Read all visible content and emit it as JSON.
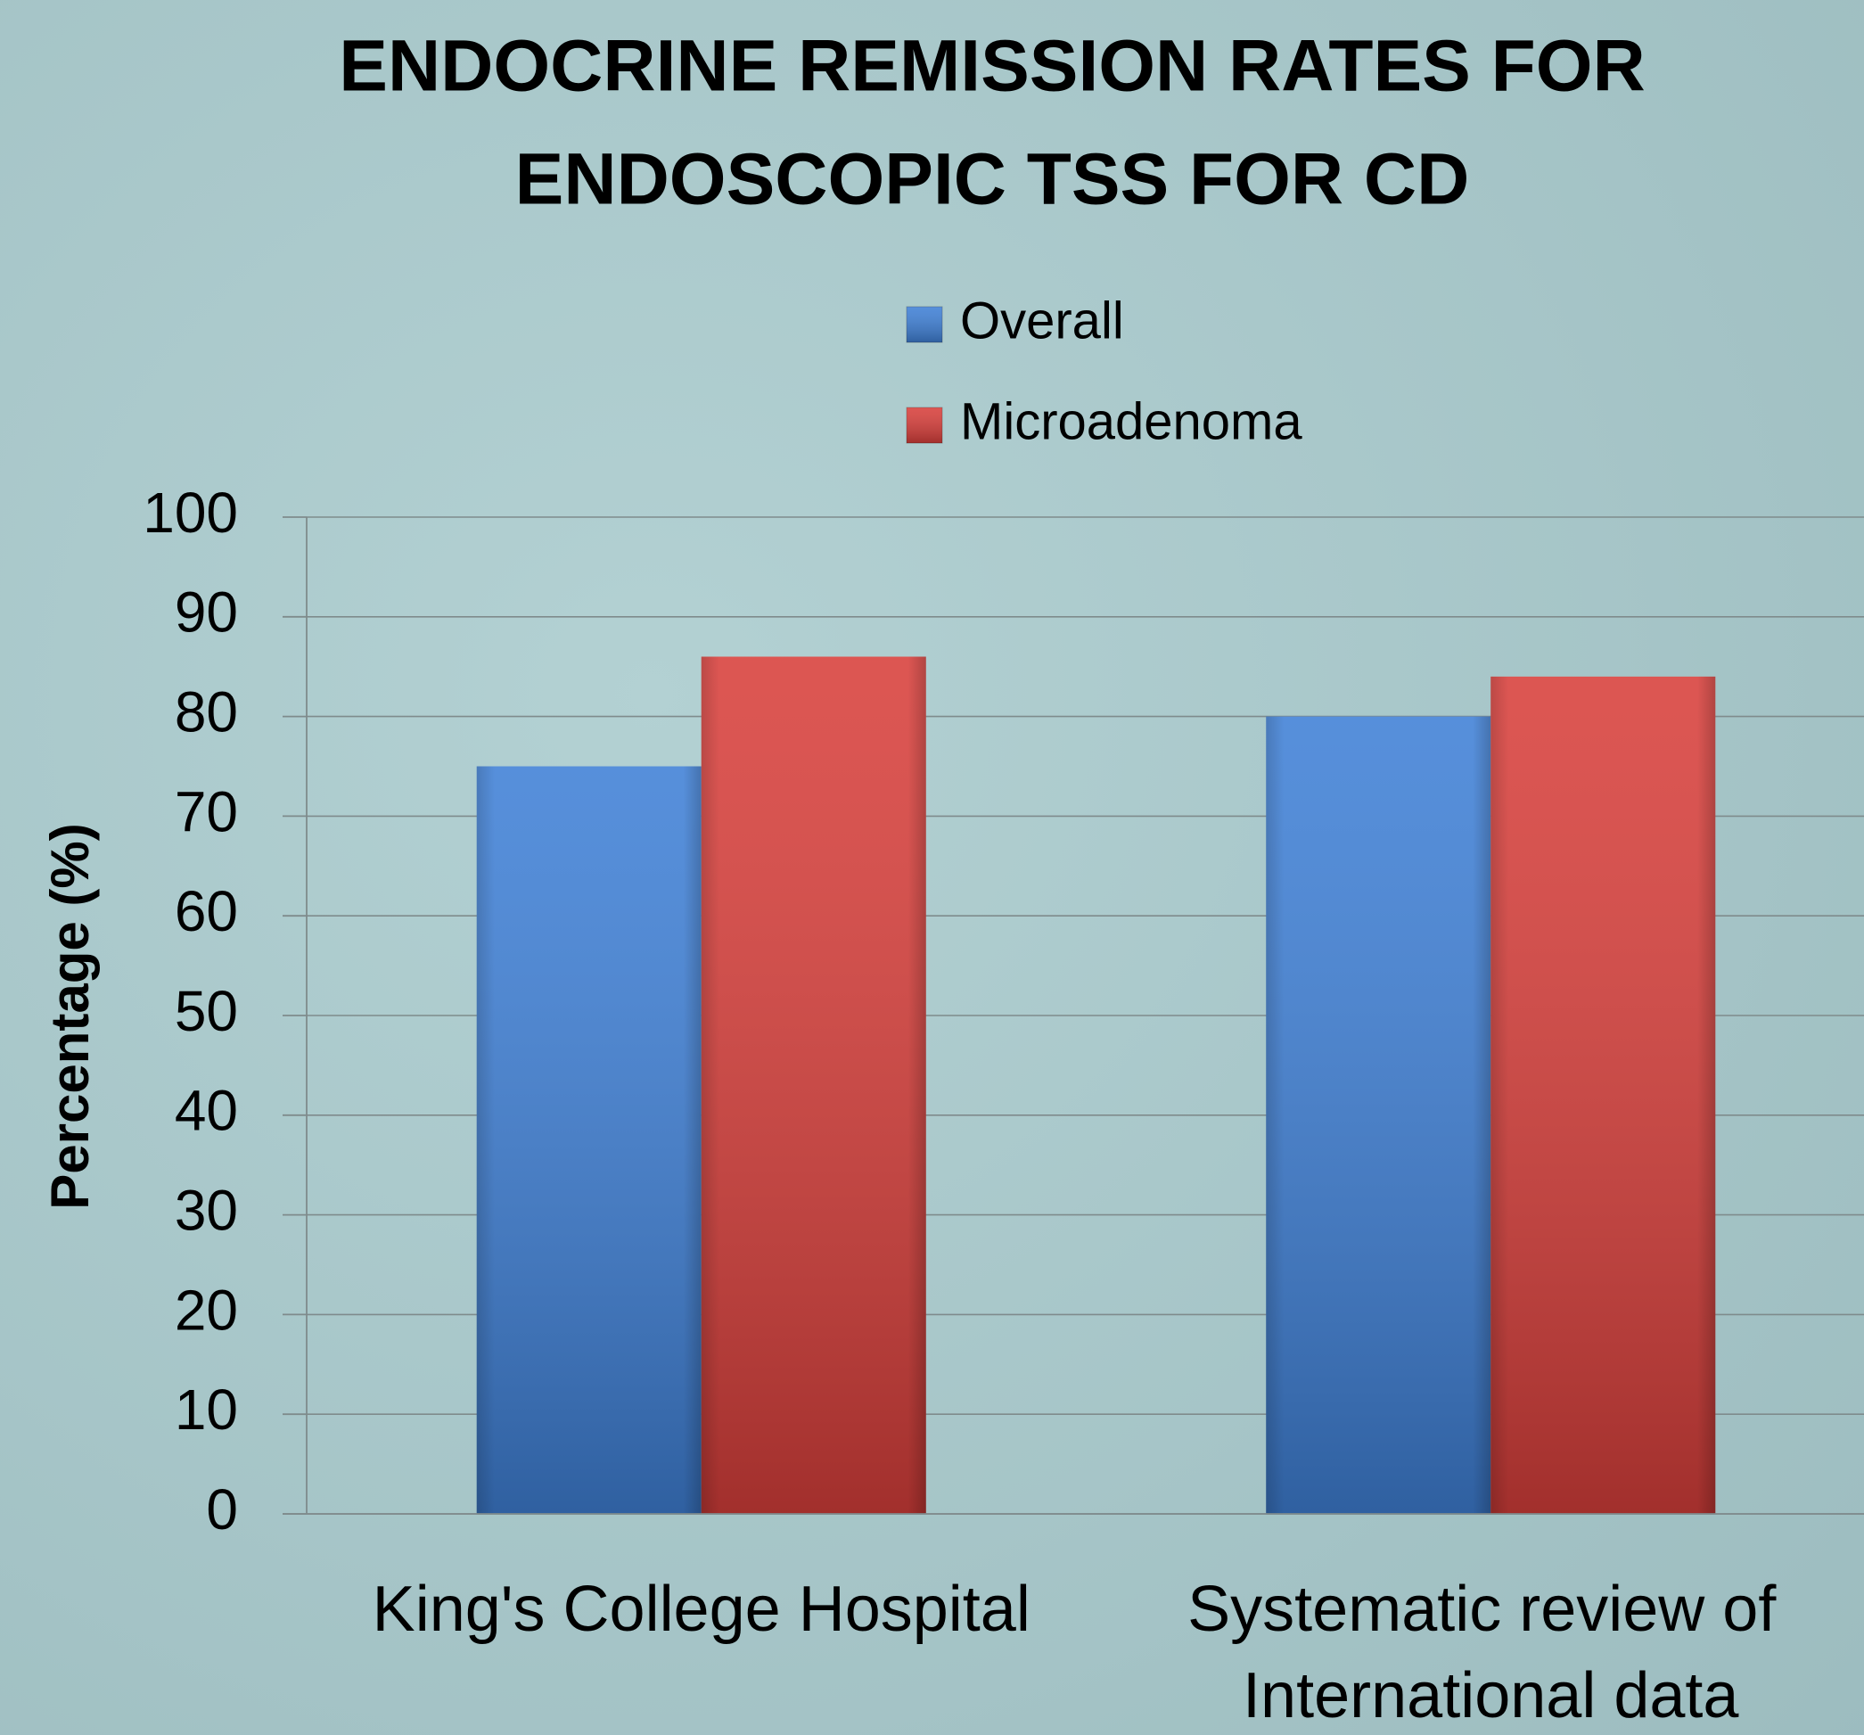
{
  "chart_data": {
    "type": "bar",
    "title": [
      "ENDOCRINE REMISSION RATES FOR",
      "ENDOSCOPIC TSS FOR CD"
    ],
    "y_label": "Percentage (%)",
    "categories": [
      "King's College Hospital",
      "Systematic review of International data"
    ],
    "series": [
      {
        "name": "Overall",
        "color": "#3f80d6",
        "values": [
          75,
          80
        ]
      },
      {
        "name": "Microadenoma",
        "color": "#d83f3b",
        "values": [
          86,
          84
        ]
      }
    ],
    "ylim": [
      0,
      100
    ],
    "yticks": [
      0,
      10,
      20,
      30,
      40,
      50,
      60,
      70,
      80,
      90,
      100
    ],
    "grid": true,
    "legend": "top"
  }
}
